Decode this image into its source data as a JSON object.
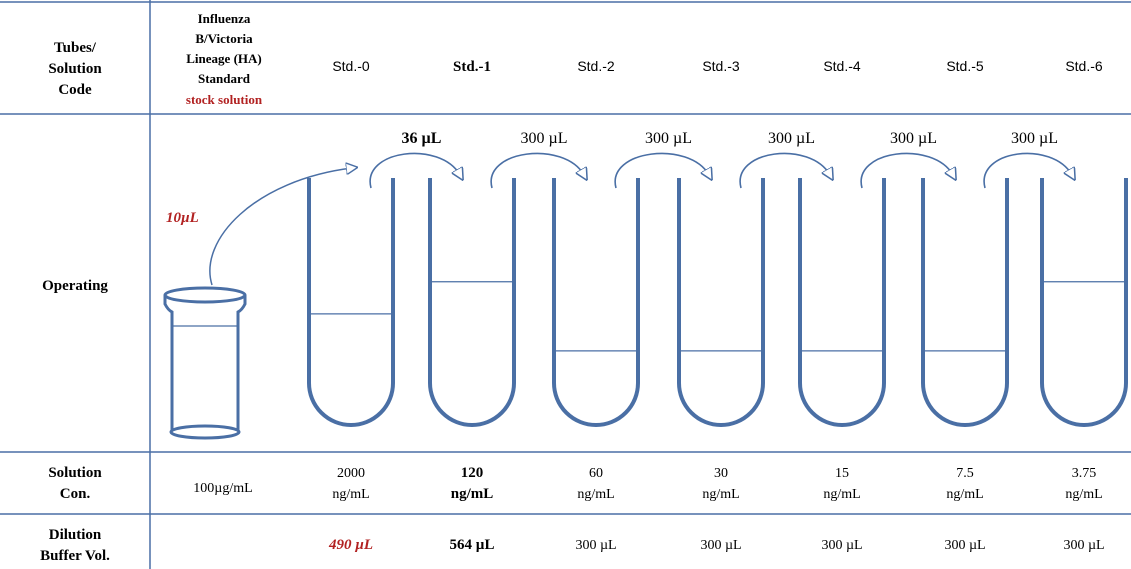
{
  "row_headers": {
    "tubes": [
      "Tubes/",
      "Solution",
      "Code"
    ],
    "operating": "Operating",
    "concentration": [
      "Solution",
      "Con."
    ],
    "dilution": [
      "Dilution",
      "Buffer Vol."
    ]
  },
  "stock": {
    "name_lines": [
      "Influenza",
      "B/Victoria",
      "Lineage (HA)",
      "Standard"
    ],
    "label_red": "stock solution",
    "transfer_volume": "10µL",
    "concentration": "100µg/mL"
  },
  "tubes": [
    {
      "code": "Std.-0",
      "bold": false,
      "conc_value": "2000",
      "conc_unit": "ng/mL",
      "buffer": "490 µL",
      "buffer_red": true,
      "fill_fraction": 0.45
    },
    {
      "code": "Std.-1",
      "bold": true,
      "conc_value": "120",
      "conc_unit": "ng/mL",
      "buffer": "564 µL",
      "buffer_red": false,
      "fill_fraction": 0.58
    },
    {
      "code": "Std.-2",
      "bold": false,
      "conc_value": "60",
      "conc_unit": "ng/mL",
      "buffer": "300 µL",
      "buffer_red": false,
      "fill_fraction": 0.3
    },
    {
      "code": "Std.-3",
      "bold": false,
      "conc_value": "30",
      "conc_unit": "ng/mL",
      "buffer": "300 µL",
      "buffer_red": false,
      "fill_fraction": 0.3
    },
    {
      "code": "Std.-4",
      "bold": false,
      "conc_value": "15",
      "conc_unit": "ng/mL",
      "buffer": "300 µL",
      "buffer_red": false,
      "fill_fraction": 0.3
    },
    {
      "code": "Std.-5",
      "bold": false,
      "conc_value": "7.5",
      "conc_unit": "ng/mL",
      "buffer": "300 µL",
      "buffer_red": false,
      "fill_fraction": 0.3
    },
    {
      "code": "Std.-6",
      "bold": false,
      "conc_value": "3.75",
      "conc_unit": "ng/mL",
      "buffer": "300 µL",
      "buffer_red": false,
      "fill_fraction": 0.58
    }
  ],
  "transfers": [
    {
      "volume": "36 µL",
      "bold": true
    },
    {
      "volume": "300 µL",
      "bold": false
    },
    {
      "volume": "300 µL",
      "bold": false
    },
    {
      "volume": "300 µL",
      "bold": false
    },
    {
      "volume": "300 µL",
      "bold": false
    },
    {
      "volume": "300 µL",
      "bold": false
    }
  ],
  "colors": {
    "line": "#4a6fa5",
    "red_text": "#b22222",
    "text": "#1a1a1a"
  }
}
